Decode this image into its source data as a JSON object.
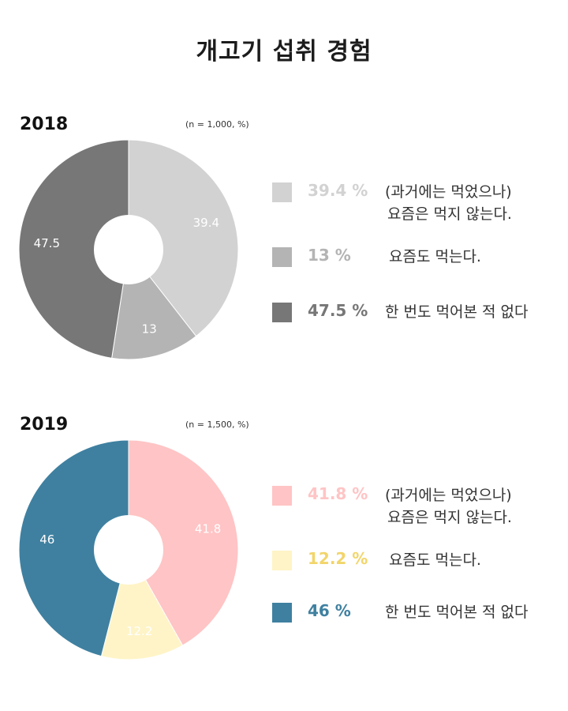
{
  "title": "개고기 섭취 경험",
  "panels": [
    {
      "year": "2018",
      "note": "(n = 1,000, %)",
      "legend": [
        {
          "pct": "39.4 %",
          "desc_line1": "(과거에는 먹었으나)",
          "desc_line2": "요즘은 먹지 않는다."
        },
        {
          "pct": "13 %",
          "desc_line1": "요즘도 먹는다.",
          "desc_line2": ""
        },
        {
          "pct": "47.5 %",
          "desc_line1": "한 번도 먹어본 적 없다",
          "desc_line2": ""
        }
      ]
    },
    {
      "year": "2019",
      "note": "(n = 1,500, %)",
      "legend": [
        {
          "pct": "41.8 %",
          "desc_line1": "(과거에는 먹었으나)",
          "desc_line2": "요즘은 먹지 않는다."
        },
        {
          "pct": "12.2 %",
          "desc_line1": "요즘도 먹는다.",
          "desc_line2": ""
        },
        {
          "pct": "46 %",
          "desc_line1": "한 번도 먹어본 적 없다",
          "desc_line2": ""
        }
      ]
    }
  ],
  "chart_data": [
    {
      "type": "pie",
      "variant": "donut",
      "title": "2018",
      "categories": [
        "(과거에는 먹었으나) 요즘은 먹지 않는다.",
        "요즘도 먹는다.",
        "한 번도 먹어본 적 없다"
      ],
      "values": [
        39.4,
        13,
        47.5
      ],
      "labels": [
        "39.4",
        "13",
        "47.5"
      ],
      "colors": [
        "#d2d2d2",
        "#b4b4b4",
        "#777777"
      ],
      "legend_position": "right"
    },
    {
      "type": "pie",
      "variant": "donut",
      "title": "2019",
      "categories": [
        "(과거에는 먹었으나) 요즘은 먹지 않는다.",
        "요즘도 먹는다.",
        "한 번도 먹어본 적 없다"
      ],
      "values": [
        41.8,
        12.2,
        46
      ],
      "labels": [
        "41.8",
        "12.2",
        "46"
      ],
      "colors": [
        "#ffc4c5",
        "#fff4c7",
        "#3f80a0"
      ],
      "legend_position": "right"
    }
  ]
}
